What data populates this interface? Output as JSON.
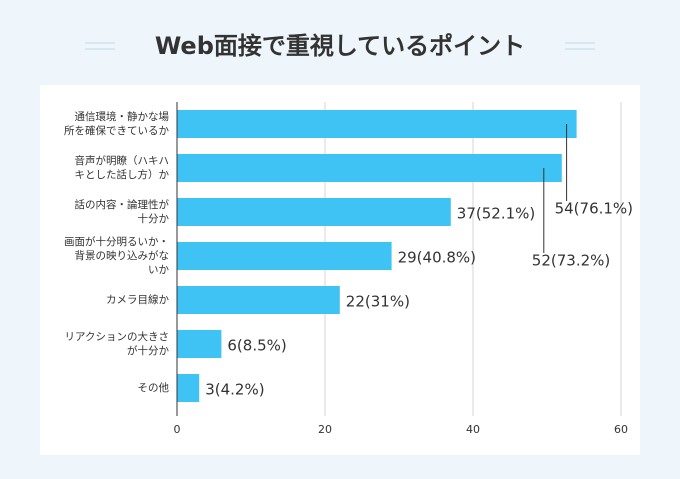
{
  "chart_data": {
    "type": "bar",
    "orientation": "horizontal",
    "title": "Web面接で重視しているポイント",
    "categories": [
      [
        "通信環境・静かな場",
        "所を確保できているか"
      ],
      [
        "音声が明瞭（ハキハ",
        "キとした話し方）か"
      ],
      [
        "話の内容・論理性が",
        "十分か"
      ],
      [
        "画面が十分明るいか・",
        "背景の映り込みがな",
        "いか"
      ],
      [
        "カメラ目線か"
      ],
      [
        "リアクションの大きさ",
        "が十分か"
      ],
      [
        "その他"
      ]
    ],
    "values": [
      54,
      52,
      37,
      29,
      22,
      6,
      3
    ],
    "value_labels": [
      "54(76.1%)",
      "52(73.2%)",
      "37(52.1%)",
      "29(40.8%)",
      "22(31%)",
      "6(8.5%)",
      "3(4.2%)"
    ],
    "color": "#3fc3f4",
    "xlim": [
      0,
      60
    ],
    "xticks": [
      0,
      20,
      40,
      60
    ],
    "grid": true
  }
}
